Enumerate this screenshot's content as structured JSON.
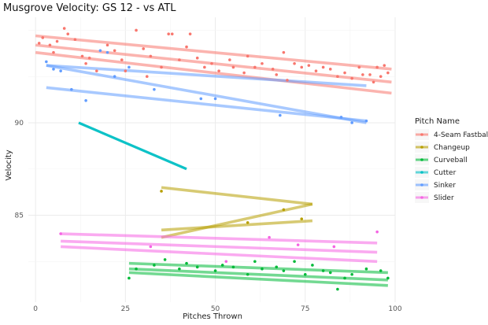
{
  "chart_data": {
    "type": "scatter",
    "title": "Musgrove Velocity: GS 12 - vs ATL",
    "xlabel": "Pitches Thrown",
    "ylabel": "Velocity",
    "xlim": [
      -2,
      100
    ],
    "ylim": [
      80.3,
      95.7
    ],
    "xticks": [
      "0",
      "25",
      "50",
      "75",
      "100"
    ],
    "yticks": [
      "85",
      "90"
    ],
    "legend_title": "Pitch Name",
    "legend_position": "right",
    "grid": true,
    "series": [
      {
        "name": "4-Seam Fastball",
        "color": "#F8766D",
        "points": [
          [
            1,
            94.3
          ],
          [
            2,
            94.6
          ],
          [
            4,
            94.2
          ],
          [
            5,
            93.8
          ],
          [
            6,
            94.4
          ],
          [
            8,
            95.1
          ],
          [
            9,
            94.8
          ],
          [
            11,
            94.5
          ],
          [
            13,
            93.6
          ],
          [
            14,
            93.2
          ],
          [
            15,
            93.5
          ],
          [
            17,
            92.8
          ],
          [
            20,
            94.2
          ],
          [
            22,
            93.9
          ],
          [
            24,
            93.4
          ],
          [
            25,
            92.8
          ],
          [
            28,
            95.0
          ],
          [
            30,
            94.0
          ],
          [
            31,
            92.5
          ],
          [
            32,
            93.6
          ],
          [
            35,
            93.0
          ],
          [
            37,
            94.8
          ],
          [
            38,
            94.8
          ],
          [
            40,
            93.4
          ],
          [
            42,
            94.1
          ],
          [
            43,
            94.8
          ],
          [
            45,
            93.5
          ],
          [
            47,
            93.0
          ],
          [
            49,
            93.2
          ],
          [
            51,
            92.8
          ],
          [
            54,
            93.4
          ],
          [
            55,
            93.0
          ],
          [
            58,
            92.7
          ],
          [
            59,
            93.6
          ],
          [
            61,
            93.0
          ],
          [
            63,
            93.2
          ],
          [
            66,
            92.9
          ],
          [
            67,
            92.6
          ],
          [
            69,
            93.8
          ],
          [
            70,
            92.3
          ],
          [
            72,
            93.2
          ],
          [
            74,
            93.0
          ],
          [
            76,
            93.1
          ],
          [
            78,
            92.8
          ],
          [
            80,
            93.0
          ],
          [
            82,
            92.9
          ],
          [
            84,
            92.5
          ],
          [
            86,
            92.7
          ],
          [
            88,
            92.4
          ],
          [
            90,
            93.0
          ],
          [
            91,
            92.6
          ],
          [
            93,
            92.6
          ],
          [
            94,
            92.2
          ],
          [
            95,
            93.0
          ],
          [
            96,
            92.5
          ],
          [
            97,
            93.1
          ],
          [
            98,
            92.7
          ]
        ],
        "trend_lines": [
          [
            [
              0,
              94.7
            ],
            [
              99,
              92.9
            ]
          ],
          [
            [
              0,
              94.2
            ],
            [
              99,
              92.2
            ]
          ],
          [
            [
              0,
              93.8
            ],
            [
              99,
              91.6
            ]
          ]
        ]
      },
      {
        "name": "Changeup",
        "color": "#B79F00",
        "points": [
          [
            35,
            86.3
          ],
          [
            59,
            84.6
          ],
          [
            69,
            85.3
          ],
          [
            74,
            84.8
          ]
        ],
        "trend_lines": [
          [
            [
              35,
              86.5
            ],
            [
              77,
              85.6
            ]
          ],
          [
            [
              77,
              85.6
            ],
            [
              35,
              83.8
            ]
          ],
          [
            [
              35,
              84.2
            ],
            [
              77,
              84.7
            ]
          ]
        ]
      },
      {
        "name": "Curveball",
        "color": "#00BA38",
        "points": [
          [
            26,
            81.6
          ],
          [
            28,
            82.1
          ],
          [
            33,
            82.3
          ],
          [
            36,
            82.6
          ],
          [
            40,
            82.1
          ],
          [
            42,
            82.4
          ],
          [
            45,
            82.2
          ],
          [
            50,
            82.0
          ],
          [
            52,
            82.3
          ],
          [
            55,
            82.2
          ],
          [
            59,
            81.8
          ],
          [
            61,
            82.5
          ],
          [
            63,
            82.1
          ],
          [
            67,
            82.2
          ],
          [
            69,
            82.0
          ],
          [
            72,
            82.5
          ],
          [
            75,
            81.8
          ],
          [
            77,
            82.3
          ],
          [
            80,
            82.0
          ],
          [
            82,
            81.9
          ],
          [
            84,
            81.0
          ],
          [
            86,
            81.6
          ],
          [
            88,
            81.8
          ],
          [
            92,
            82.1
          ],
          [
            96,
            82.0
          ],
          [
            98,
            81.6
          ]
        ],
        "trend_lines": [
          [
            [
              26,
              82.4
            ],
            [
              98,
              81.9
            ]
          ],
          [
            [
              26,
              82.1
            ],
            [
              98,
              81.5
            ]
          ],
          [
            [
              26,
              81.9
            ],
            [
              98,
              81.2
            ]
          ]
        ]
      },
      {
        "name": "Cutter",
        "color": "#00BFC4",
        "points": [],
        "trend_lines": [
          [
            [
              12,
              90.0
            ],
            [
              42,
              87.5
            ]
          ]
        ]
      },
      {
        "name": "Sinker",
        "color": "#619CFF",
        "points": [
          [
            3,
            93.3
          ],
          [
            5,
            92.9
          ],
          [
            7,
            92.8
          ],
          [
            10,
            91.8
          ],
          [
            14,
            91.2
          ],
          [
            18,
            93.9
          ],
          [
            20,
            93.8
          ],
          [
            22,
            92.5
          ],
          [
            26,
            93.0
          ],
          [
            33,
            91.8
          ],
          [
            46,
            91.3
          ],
          [
            50,
            91.3
          ],
          [
            68,
            90.4
          ],
          [
            85,
            90.3
          ],
          [
            88,
            90.0
          ],
          [
            92,
            90.1
          ]
        ],
        "trend_lines": [
          [
            [
              3,
              93.1
            ],
            [
              92,
              92.0
            ]
          ],
          [
            [
              3,
              93.1
            ],
            [
              92,
              90.0
            ]
          ],
          [
            [
              3,
              91.9
            ],
            [
              92,
              90.1
            ]
          ]
        ]
      },
      {
        "name": "Slider",
        "color": "#F564E3",
        "points": [
          [
            7,
            84.0
          ],
          [
            32,
            83.3
          ],
          [
            53,
            82.5
          ],
          [
            65,
            83.8
          ],
          [
            73,
            83.4
          ],
          [
            83,
            83.3
          ],
          [
            95,
            84.1
          ]
        ],
        "trend_lines": [
          [
            [
              7,
              84.0
            ],
            [
              95,
              83.5
            ]
          ],
          [
            [
              7,
              83.6
            ],
            [
              95,
              83.0
            ]
          ],
          [
            [
              7,
              83.3
            ],
            [
              95,
              82.5
            ]
          ]
        ]
      }
    ]
  }
}
